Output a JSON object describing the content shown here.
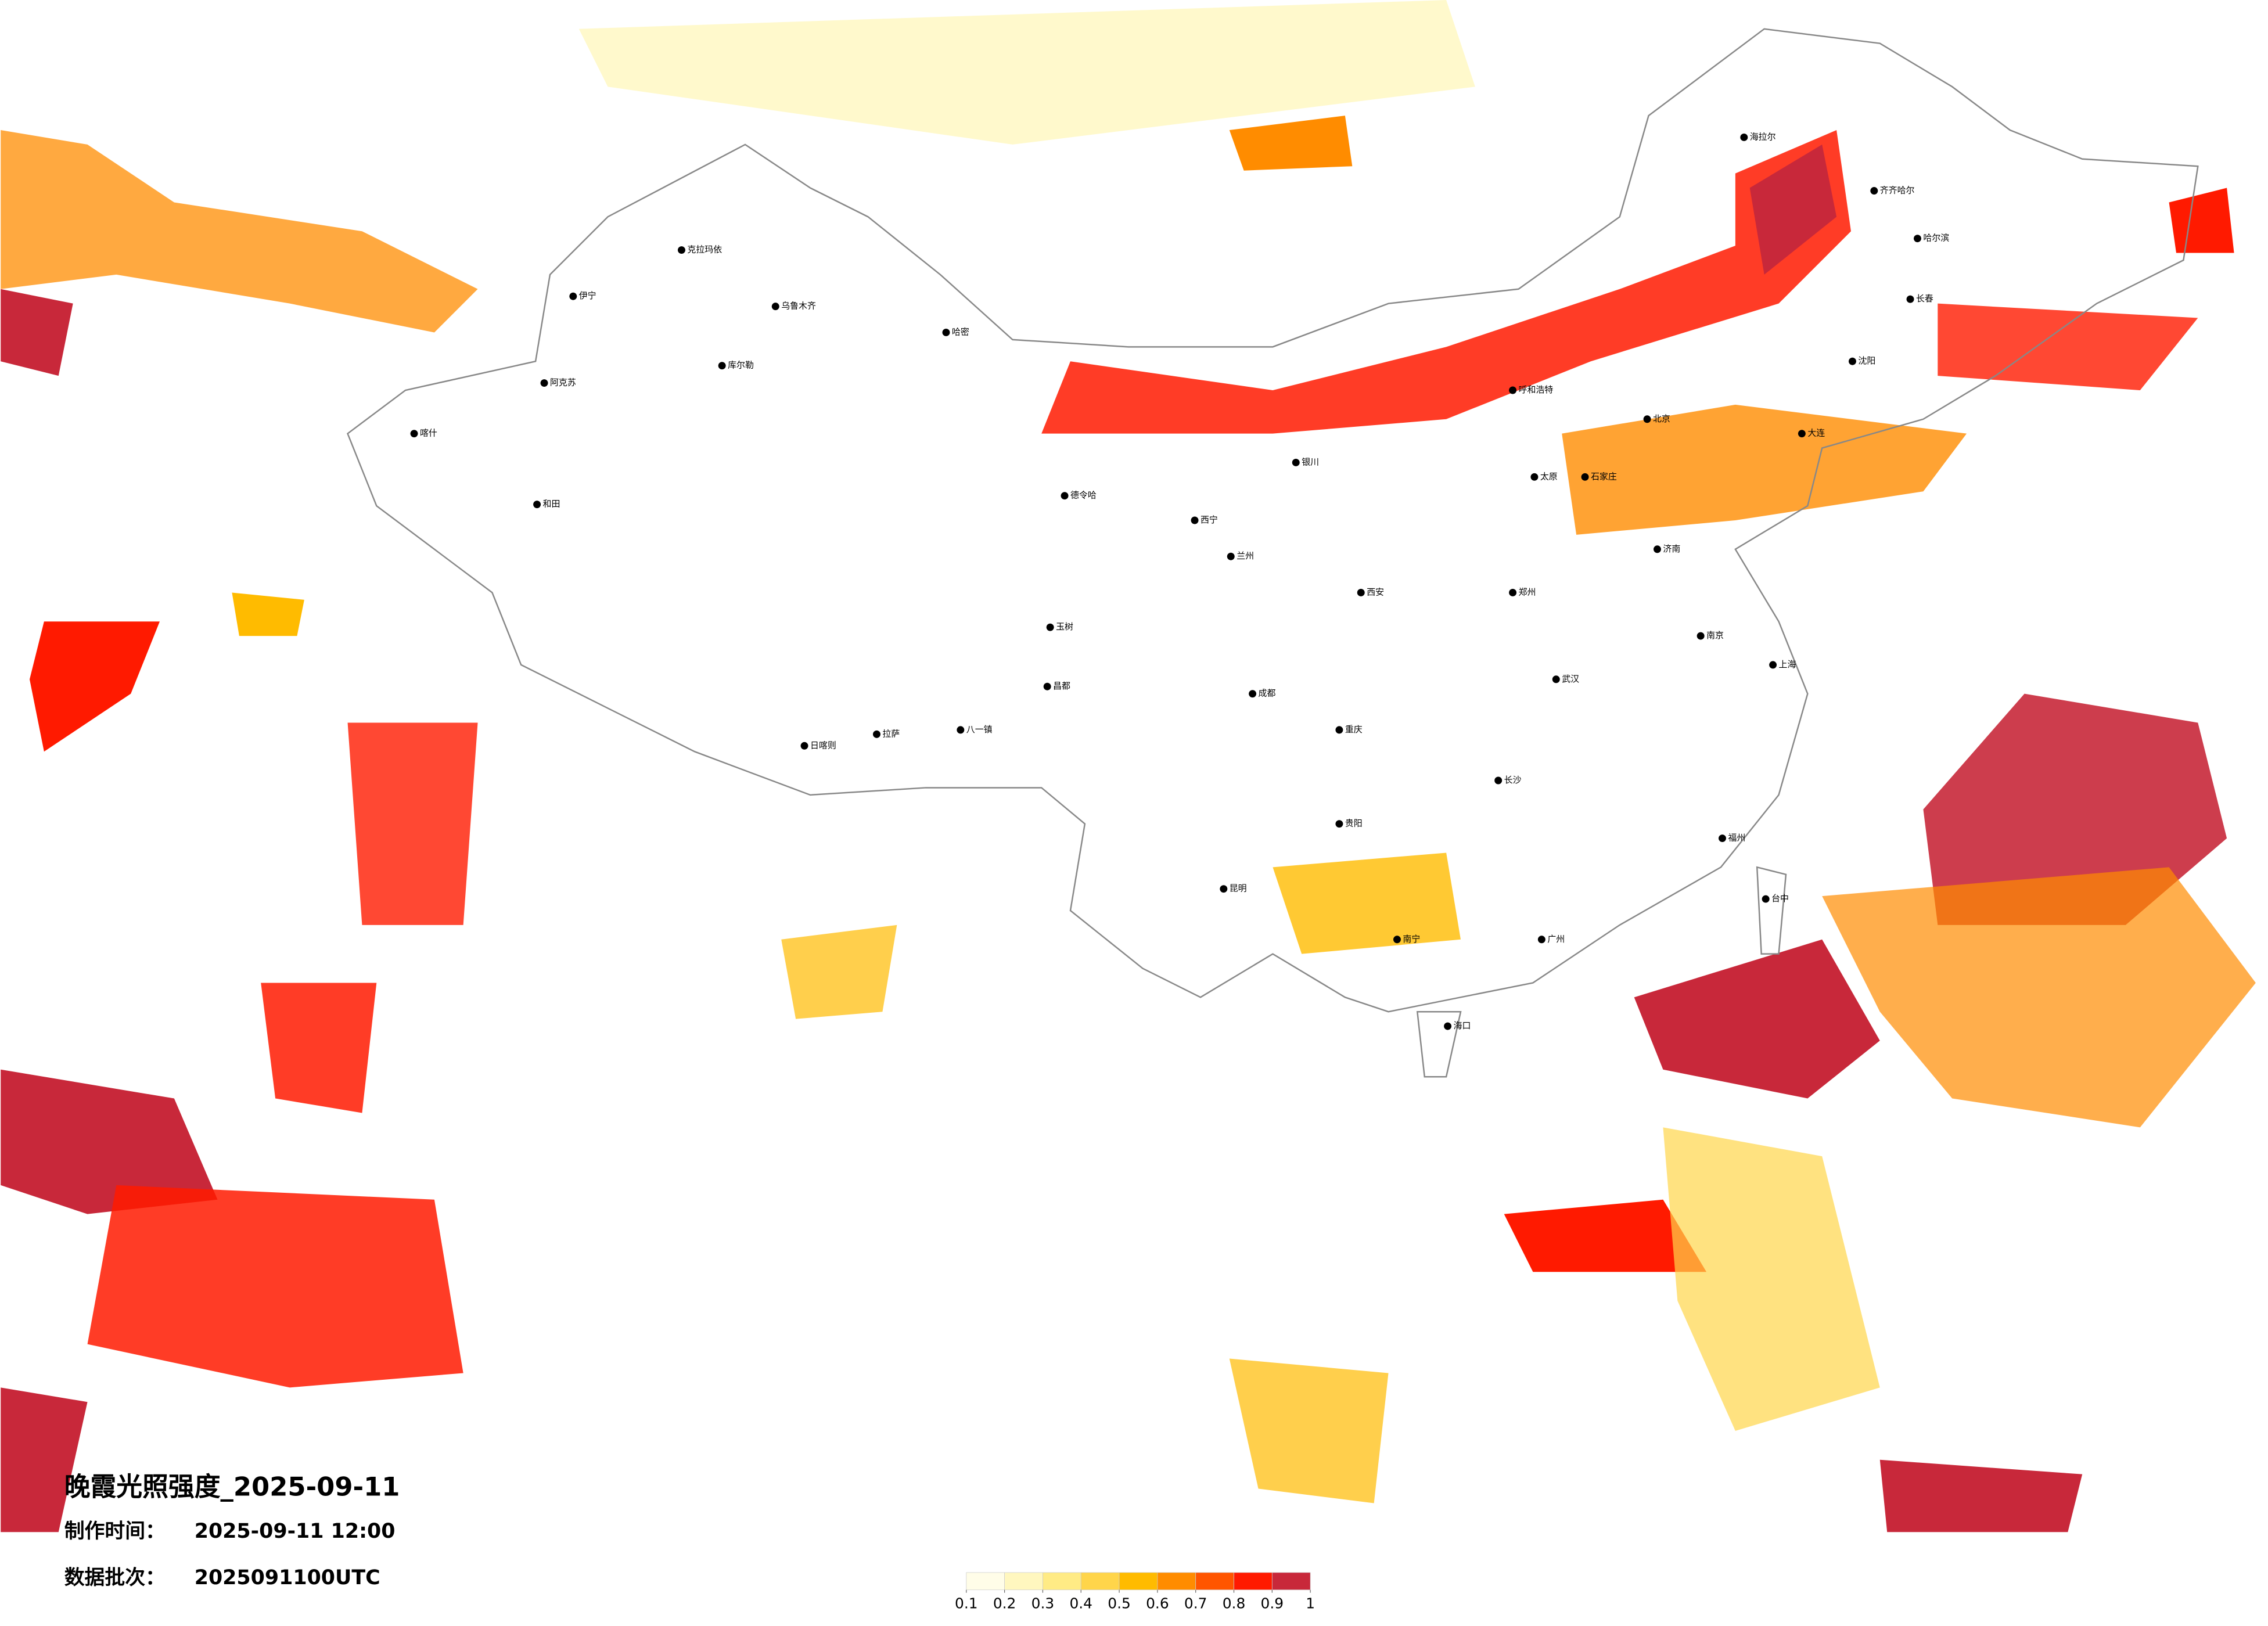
{
  "title": "晚霞光照强度_2025-09-11",
  "production_time": {
    "label": "制作时间：",
    "value": "2025-09-11 12:00"
  },
  "data_batch": {
    "label": "数据批次：",
    "value": "2025091100UTC"
  },
  "legend": {
    "ticks": [
      0.1,
      0.2,
      0.3,
      0.4,
      0.5,
      0.6,
      0.7,
      0.8,
      0.9,
      1
    ],
    "colors": [
      "#fffde8",
      "#fff7bf",
      "#ffeb85",
      "#ffd54a",
      "#ffbb00",
      "#ff8c00",
      "#ff5500",
      "#ff1a00",
      "#c8283a"
    ]
  },
  "cities": [
    "伊宁",
    "克拉玛依",
    "乌鲁木齐",
    "库尔勒",
    "阿克苏",
    "和田",
    "喀什",
    "哈密",
    "拉萨",
    "日喀则",
    "八一镇",
    "昌都",
    "玉树",
    "德令哈",
    "西宁",
    "兰州",
    "银川",
    "呼和浩特",
    "太原",
    "石家庄",
    "北京",
    "郑州",
    "西安",
    "成都",
    "重庆",
    "贵阳",
    "昆明",
    "南宁",
    "广州",
    "长沙",
    "武汉",
    "南京",
    "上海",
    "福州",
    "海口",
    "哈尔滨",
    "长春",
    "沈阳",
    "大连",
    "济南",
    "台中",
    "海拉尔",
    "齐齐哈尔"
  ]
}
